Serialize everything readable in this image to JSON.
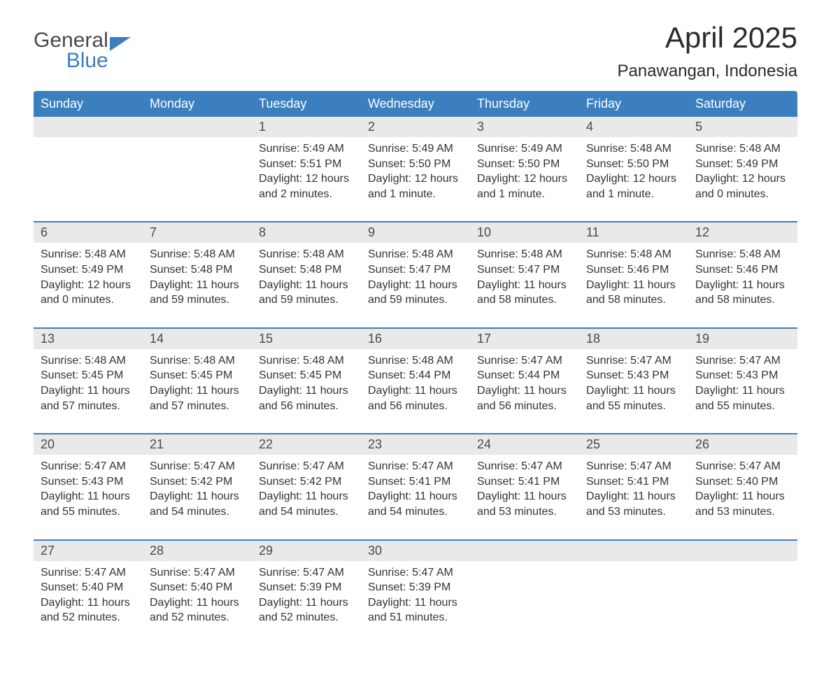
{
  "logo": {
    "line1": "General",
    "line2": "Blue"
  },
  "title": "April 2025",
  "location": "Panawangan, Indonesia",
  "colors": {
    "header_bg": "#3b7fbf",
    "header_text": "#ffffff",
    "date_bg": "#e9e9e9",
    "text": "#333333",
    "rule": "#3b7fbf",
    "page_bg": "#ffffff"
  },
  "typography": {
    "title_fontsize": 42,
    "location_fontsize": 24,
    "header_fontsize": 18,
    "date_fontsize": 18,
    "detail_fontsize": 16
  },
  "day_headers": [
    "Sunday",
    "Monday",
    "Tuesday",
    "Wednesday",
    "Thursday",
    "Friday",
    "Saturday"
  ],
  "weeks": [
    [
      {
        "date": "",
        "detail": ""
      },
      {
        "date": "",
        "detail": ""
      },
      {
        "date": "1",
        "detail": "Sunrise: 5:49 AM\nSunset: 5:51 PM\nDaylight: 12 hours and 2 minutes."
      },
      {
        "date": "2",
        "detail": "Sunrise: 5:49 AM\nSunset: 5:50 PM\nDaylight: 12 hours and 1 minute."
      },
      {
        "date": "3",
        "detail": "Sunrise: 5:49 AM\nSunset: 5:50 PM\nDaylight: 12 hours and 1 minute."
      },
      {
        "date": "4",
        "detail": "Sunrise: 5:48 AM\nSunset: 5:50 PM\nDaylight: 12 hours and 1 minute."
      },
      {
        "date": "5",
        "detail": "Sunrise: 5:48 AM\nSunset: 5:49 PM\nDaylight: 12 hours and 0 minutes."
      }
    ],
    [
      {
        "date": "6",
        "detail": "Sunrise: 5:48 AM\nSunset: 5:49 PM\nDaylight: 12 hours and 0 minutes."
      },
      {
        "date": "7",
        "detail": "Sunrise: 5:48 AM\nSunset: 5:48 PM\nDaylight: 11 hours and 59 minutes."
      },
      {
        "date": "8",
        "detail": "Sunrise: 5:48 AM\nSunset: 5:48 PM\nDaylight: 11 hours and 59 minutes."
      },
      {
        "date": "9",
        "detail": "Sunrise: 5:48 AM\nSunset: 5:47 PM\nDaylight: 11 hours and 59 minutes."
      },
      {
        "date": "10",
        "detail": "Sunrise: 5:48 AM\nSunset: 5:47 PM\nDaylight: 11 hours and 58 minutes."
      },
      {
        "date": "11",
        "detail": "Sunrise: 5:48 AM\nSunset: 5:46 PM\nDaylight: 11 hours and 58 minutes."
      },
      {
        "date": "12",
        "detail": "Sunrise: 5:48 AM\nSunset: 5:46 PM\nDaylight: 11 hours and 58 minutes."
      }
    ],
    [
      {
        "date": "13",
        "detail": "Sunrise: 5:48 AM\nSunset: 5:45 PM\nDaylight: 11 hours and 57 minutes."
      },
      {
        "date": "14",
        "detail": "Sunrise: 5:48 AM\nSunset: 5:45 PM\nDaylight: 11 hours and 57 minutes."
      },
      {
        "date": "15",
        "detail": "Sunrise: 5:48 AM\nSunset: 5:45 PM\nDaylight: 11 hours and 56 minutes."
      },
      {
        "date": "16",
        "detail": "Sunrise: 5:48 AM\nSunset: 5:44 PM\nDaylight: 11 hours and 56 minutes."
      },
      {
        "date": "17",
        "detail": "Sunrise: 5:47 AM\nSunset: 5:44 PM\nDaylight: 11 hours and 56 minutes."
      },
      {
        "date": "18",
        "detail": "Sunrise: 5:47 AM\nSunset: 5:43 PM\nDaylight: 11 hours and 55 minutes."
      },
      {
        "date": "19",
        "detail": "Sunrise: 5:47 AM\nSunset: 5:43 PM\nDaylight: 11 hours and 55 minutes."
      }
    ],
    [
      {
        "date": "20",
        "detail": "Sunrise: 5:47 AM\nSunset: 5:43 PM\nDaylight: 11 hours and 55 minutes."
      },
      {
        "date": "21",
        "detail": "Sunrise: 5:47 AM\nSunset: 5:42 PM\nDaylight: 11 hours and 54 minutes."
      },
      {
        "date": "22",
        "detail": "Sunrise: 5:47 AM\nSunset: 5:42 PM\nDaylight: 11 hours and 54 minutes."
      },
      {
        "date": "23",
        "detail": "Sunrise: 5:47 AM\nSunset: 5:41 PM\nDaylight: 11 hours and 54 minutes."
      },
      {
        "date": "24",
        "detail": "Sunrise: 5:47 AM\nSunset: 5:41 PM\nDaylight: 11 hours and 53 minutes."
      },
      {
        "date": "25",
        "detail": "Sunrise: 5:47 AM\nSunset: 5:41 PM\nDaylight: 11 hours and 53 minutes."
      },
      {
        "date": "26",
        "detail": "Sunrise: 5:47 AM\nSunset: 5:40 PM\nDaylight: 11 hours and 53 minutes."
      }
    ],
    [
      {
        "date": "27",
        "detail": "Sunrise: 5:47 AM\nSunset: 5:40 PM\nDaylight: 11 hours and 52 minutes."
      },
      {
        "date": "28",
        "detail": "Sunrise: 5:47 AM\nSunset: 5:40 PM\nDaylight: 11 hours and 52 minutes."
      },
      {
        "date": "29",
        "detail": "Sunrise: 5:47 AM\nSunset: 5:39 PM\nDaylight: 11 hours and 52 minutes."
      },
      {
        "date": "30",
        "detail": "Sunrise: 5:47 AM\nSunset: 5:39 PM\nDaylight: 11 hours and 51 minutes."
      },
      {
        "date": "",
        "detail": ""
      },
      {
        "date": "",
        "detail": ""
      },
      {
        "date": "",
        "detail": ""
      }
    ]
  ]
}
